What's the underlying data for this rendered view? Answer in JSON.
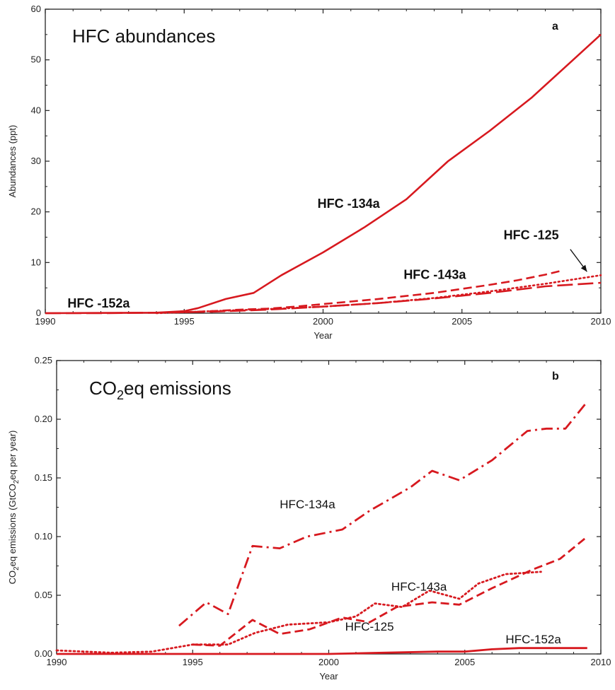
{
  "colors": {
    "series": "#d7191f",
    "axis": "#222222"
  },
  "chart_data": [
    {
      "id": "a",
      "type": "line",
      "title": "HFC abundances",
      "panel_letter": "a",
      "xlabel": "Year",
      "ylabel": "Abundances (ppt)",
      "xlim": [
        1990,
        2010
      ],
      "ylim": [
        0,
        60
      ],
      "xticks": [
        1990,
        1995,
        2000,
        2005,
        2010
      ],
      "yticks": [
        0,
        10,
        20,
        30,
        40,
        50,
        60
      ],
      "series": [
        {
          "name": "HFC -134a",
          "dash": "solid",
          "x": [
            1990,
            1994,
            1995,
            1995.5,
            1996.5,
            1997.5,
            1998.5,
            2000,
            2001.5,
            2003,
            2004.5,
            2006,
            2007.5,
            2009,
            2010
          ],
          "y": [
            0,
            0.1,
            0.4,
            1,
            2.8,
            4,
            7.5,
            12,
            17,
            22.5,
            30,
            36,
            42.5,
            50,
            55
          ]
        },
        {
          "name": "HFC -143a",
          "dash": "dashed",
          "x": [
            1995,
            1996,
            1997,
            1998,
            1999,
            2000,
            2001,
            2002,
            2003,
            2004,
            2005,
            2006,
            2007,
            2008,
            2008.6
          ],
          "y": [
            0.2,
            0.4,
            0.7,
            0.9,
            1.3,
            1.8,
            2.3,
            2.8,
            3.4,
            4.0,
            4.8,
            5.6,
            6.5,
            7.6,
            8.4
          ]
        },
        {
          "name": "HFC -125",
          "dash": "dotted",
          "x": [
            1994,
            1996,
            1998,
            2000,
            2002,
            2004,
            2006,
            2008,
            2010
          ],
          "y": [
            0,
            0.4,
            0.8,
            1.3,
            2.0,
            3.0,
            4.3,
            5.8,
            7.5
          ]
        },
        {
          "name": "HFC -152a",
          "dash": "longdash",
          "x": [
            1990,
            1992,
            1994,
            1996,
            1998,
            2000,
            2002,
            2004,
            2006,
            2008,
            2010
          ],
          "y": [
            0,
            0,
            0.1,
            0.3,
            0.7,
            1.3,
            2.0,
            2.9,
            4.0,
            5.3,
            6.0
          ]
        }
      ],
      "annotations": [
        {
          "text": "HFC -134a",
          "x": 1999.8,
          "y": 20.8
        },
        {
          "text": "HFC -143a",
          "x": 2002.9,
          "y": 6.8
        },
        {
          "text": "HFC -125",
          "x": 2006.5,
          "y": 14.6
        },
        {
          "text": "HFC -152a",
          "x": 1990.8,
          "y": 1.1
        }
      ]
    },
    {
      "id": "b",
      "type": "line",
      "title_main": "CO",
      "title_sub": "2",
      "title_rest": "eq emissions",
      "panel_letter": "b",
      "xlabel": "Year",
      "ylabel_parts": [
        "CO",
        "2",
        "eq emissions (GtCO",
        "2",
        "eq per year)"
      ],
      "xlim": [
        1990,
        2010
      ],
      "ylim": [
        0,
        0.25
      ],
      "xticks": [
        1990,
        1995,
        2000,
        2005,
        2010
      ],
      "yticks": [
        "0.00",
        "0.05",
        "0.10",
        "0.15",
        "0.20",
        "0.25"
      ],
      "series": [
        {
          "name": "HFC-134a",
          "dash": "dashdot",
          "x": [
            1994.5,
            1995.5,
            1996.3,
            1997.2,
            1998.2,
            1999.2,
            2000.5,
            2001.5,
            2003,
            2003.8,
            2004.8,
            2006,
            2007.3,
            2008,
            2008.7,
            2009.5
          ],
          "y": [
            0.024,
            0.044,
            0.034,
            0.092,
            0.09,
            0.1,
            0.106,
            0.122,
            0.142,
            0.156,
            0.148,
            0.165,
            0.19,
            0.192,
            0.192,
            0.215
          ]
        },
        {
          "name": "HFC-143a",
          "dash": "dashed",
          "x": [
            1995,
            1996,
            1997.2,
            1998.2,
            1999.3,
            2000.5,
            2001.5,
            2002.5,
            2003.8,
            2004.8,
            2006,
            2007.5,
            2008.5,
            2009.5
          ],
          "y": [
            0.008,
            0.007,
            0.029,
            0.017,
            0.021,
            0.031,
            0.027,
            0.04,
            0.044,
            0.042,
            0.056,
            0.072,
            0.081,
            0.1
          ]
        },
        {
          "name": "HFC-125",
          "dash": "dotted",
          "x": [
            1990,
            1992,
            1993.5,
            1995,
            1996.3,
            1997.3,
            1998.5,
            2000,
            2001,
            2001.7,
            2002.7,
            2003.7,
            2004.8,
            2005.5,
            2006.5,
            2007.8
          ],
          "y": [
            0.003,
            0.001,
            0.002,
            0.008,
            0.008,
            0.018,
            0.025,
            0.027,
            0.032,
            0.043,
            0.04,
            0.054,
            0.047,
            0.06,
            0.068,
            0.07
          ]
        },
        {
          "name": "HFC-152a",
          "dash": "solid",
          "x": [
            1990,
            1995,
            2000,
            2002,
            2004,
            2005,
            2006,
            2007,
            2008,
            2009.5
          ],
          "y": [
            0,
            0,
            0,
            0.001,
            0.002,
            0.002,
            0.004,
            0.005,
            0.005,
            0.005
          ]
        }
      ],
      "annotations": [
        {
          "text": "HFC-134a",
          "x": 1998.2,
          "y": 0.124
        },
        {
          "text": "HFC-143a",
          "x": 2002.3,
          "y": 0.054
        },
        {
          "text": "HFC-125",
          "x": 2000.6,
          "y": 0.02
        },
        {
          "text": "HFC-152a",
          "x": 2006.5,
          "y": 0.009
        }
      ]
    }
  ]
}
